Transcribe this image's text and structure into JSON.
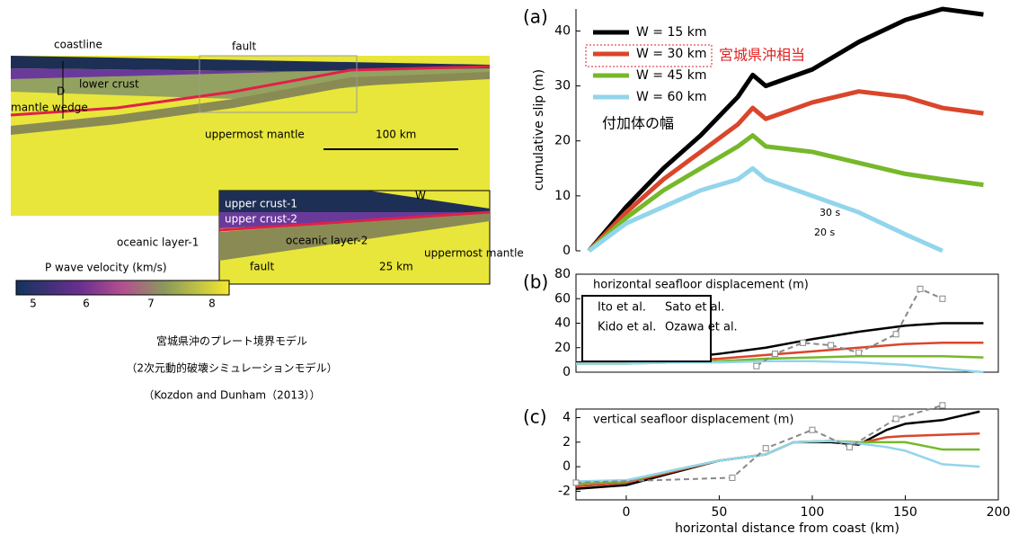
{
  "diagram": {
    "labels": [
      "coastline",
      "fault",
      "D",
      "lower crust",
      "mantle wedge",
      "uppermost mantle",
      "100 km"
    ],
    "inset": [
      "upper crust-1",
      "upper crust-2",
      "W",
      "oceanic layer-1",
      "oceanic layer-2",
      "uppermost mantle",
      "fault",
      "25 km"
    ],
    "colorbar": {
      "title": "P wave velocity (km/s)",
      "ticks": [
        "5",
        "6",
        "7",
        "8"
      ]
    },
    "caption": [
      "宮城県沖のプレート境界モデル",
      "（2次元動的破壊シミュレーションモデル）",
      "（Kozdon and Dunham（2013））"
    ]
  },
  "chart_data": [
    {
      "type": "line",
      "label": "(a)",
      "ylabel": "cumulative slip (m)",
      "xlim": [
        -27,
        200
      ],
      "ylim": [
        0,
        44
      ],
      "yticks": [
        0,
        10,
        20,
        30,
        40
      ],
      "x": [
        -20,
        0,
        20,
        40,
        60,
        68,
        75,
        100,
        125,
        150,
        170,
        192
      ],
      "series": [
        {
          "name": "W = 15 km",
          "color": "#000000",
          "values": [
            0,
            8,
            15,
            21,
            28,
            32,
            30,
            33,
            38,
            42,
            44,
            43
          ]
        },
        {
          "name": "W = 30 km",
          "color": "#d9462b",
          "values": [
            0,
            7,
            13,
            18,
            23,
            26,
            24,
            27,
            29,
            28,
            26,
            25
          ]
        },
        {
          "name": "W = 45 km",
          "color": "#76b82a",
          "values": [
            0,
            6,
            11,
            15,
            19,
            21,
            19,
            18,
            16,
            14,
            13,
            12
          ]
        },
        {
          "name": "W = 60 km",
          "color": "#92d5ec",
          "values": [
            0,
            5,
            8,
            11,
            13,
            15,
            13,
            10,
            7,
            3,
            0,
            null
          ]
        }
      ],
      "annotations": [
        "宮城県沖相当",
        "付加体の幅",
        "30 s",
        "20 s"
      ]
    },
    {
      "type": "line",
      "label": "(b)",
      "title": "horizontal seafloor displacement (m)",
      "xlim": [
        -27,
        200
      ],
      "ylim": [
        0,
        80
      ],
      "yticks": [
        0,
        20,
        40,
        60,
        80
      ],
      "x": [
        -27,
        0,
        25,
        50,
        75,
        100,
        125,
        150,
        170,
        192
      ],
      "series": [
        {
          "color": "#000000",
          "values": [
            8,
            9,
            11,
            15,
            20,
            27,
            33,
            38,
            40,
            40
          ]
        },
        {
          "color": "#d9462b",
          "values": [
            7,
            8,
            9,
            11,
            14,
            17,
            20,
            23,
            24,
            24
          ]
        },
        {
          "color": "#76b82a",
          "values": [
            7,
            7,
            8,
            9,
            11,
            12,
            13,
            13,
            13,
            12
          ]
        },
        {
          "color": "#92d5ec",
          "values": [
            7,
            7,
            8,
            8,
            9,
            9,
            8,
            6,
            3,
            0
          ]
        }
      ],
      "observed": {
        "color": "#888888",
        "x": [
          70,
          80,
          95,
          110,
          125,
          145,
          158,
          170
        ],
        "values": [
          5,
          15,
          24,
          22,
          16,
          31,
          68,
          60
        ]
      },
      "legend": [
        "Ito et al.",
        "Sato et al.",
        "Kido et al.",
        "Ozawa et al."
      ]
    },
    {
      "type": "line",
      "label": "(c)",
      "title": "vertical seafloor displacement (m)",
      "xlabel": "horizontal distance from coast (km)",
      "xlim": [
        -27,
        200
      ],
      "ylim": [
        -2.7,
        4.7
      ],
      "yticks": [
        -2,
        0,
        2,
        4
      ],
      "xticks": [
        0,
        50,
        100,
        150,
        200
      ],
      "x": [
        -27,
        0,
        25,
        50,
        75,
        90,
        110,
        125,
        140,
        150,
        170,
        190
      ],
      "series": [
        {
          "color": "#000000",
          "values": [
            -1.8,
            -1.5,
            -0.5,
            0.5,
            1,
            2,
            2,
            1.8,
            3,
            3.5,
            3.8,
            4.5
          ]
        },
        {
          "color": "#d9462b",
          "values": [
            -1.6,
            -1.3,
            -0.4,
            0.5,
            1,
            2,
            2.1,
            1.9,
            2.4,
            2.5,
            2.6,
            2.7
          ]
        },
        {
          "color": "#76b82a",
          "values": [
            -1.4,
            -1.2,
            -0.3,
            0.5,
            1,
            2,
            2.1,
            2,
            2,
            2,
            1.4,
            1.4
          ]
        },
        {
          "color": "#92d5ec",
          "values": [
            -1.2,
            -1.1,
            -0.3,
            0.5,
            1,
            2,
            2.1,
            1.9,
            1.6,
            1.3,
            0.2,
            0
          ]
        }
      ],
      "observed": {
        "color": "#888888",
        "x": [
          -27,
          57,
          75,
          100,
          120,
          145,
          170
        ],
        "values": [
          -1.3,
          -0.9,
          1.5,
          3,
          1.6,
          3.9,
          5
        ]
      }
    }
  ]
}
